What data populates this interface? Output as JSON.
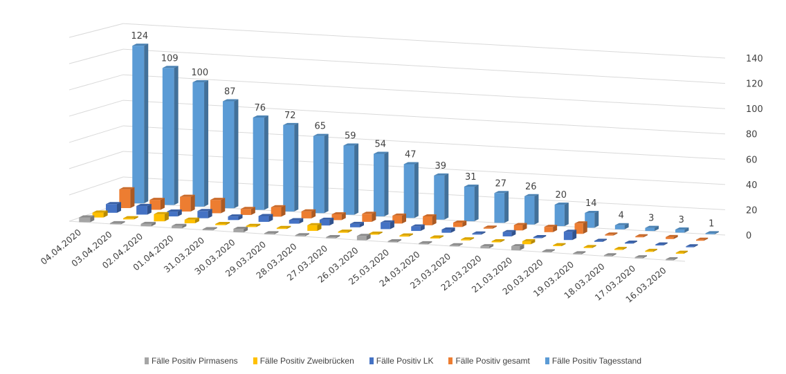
{
  "chart_data": {
    "type": "bar",
    "subtype": "3d-column",
    "title": "",
    "xlabel": "",
    "ylabel": "",
    "ylim": [
      0,
      140
    ],
    "yticks": [
      0,
      20,
      40,
      60,
      80,
      100,
      120,
      140
    ],
    "ytick_labels": [
      "0",
      "20",
      "40",
      "60",
      "80",
      "100",
      "120",
      "140"
    ],
    "grid": true,
    "legend_position": "bottom",
    "categories": [
      "04.04.2020",
      "03.04.2020",
      "02.04.2020",
      "01.04.2020",
      "31.03.2020",
      "30.03.2020",
      "29.03.2020",
      "28.03.2020",
      "27.03.2020",
      "26.03.2020",
      "25.03.2020",
      "24.03.2020",
      "23.03.2020",
      "22.03.2020",
      "21.03.2020",
      "20.03.2020",
      "19.03.2020",
      "18.03.2020",
      "17.03.2020",
      "16.03.2020"
    ],
    "series": [
      {
        "name": "Fälle Positiv Pirmasens",
        "color": "#a5a5a5",
        "values": [
          4,
          0,
          2,
          2,
          0,
          3,
          0,
          0,
          1,
          4,
          0,
          0,
          0,
          2,
          4,
          1,
          0,
          0,
          0,
          0
        ]
      },
      {
        "name": "Fälle Positiv Zweibrücken",
        "color": "#ffc000",
        "values": [
          4,
          1,
          6,
          3,
          1,
          1,
          0,
          5,
          1,
          0,
          1,
          0,
          0,
          1,
          3,
          0,
          0,
          0,
          0,
          0
        ]
      },
      {
        "name": "Fälle Positiv LK",
        "color": "#4472c4",
        "values": [
          7,
          7,
          4,
          6,
          3,
          5,
          3,
          5,
          3,
          6,
          4,
          3,
          1,
          4,
          1,
          8,
          0,
          0,
          1,
          1
        ]
      },
      {
        "name": "Fälle Positiv gesamt",
        "color": "#ed7d31",
        "values": [
          15,
          8,
          12,
          11,
          5,
          8,
          6,
          5,
          7,
          7,
          8,
          4,
          1,
          5,
          5,
          10,
          0.5,
          0.5,
          2,
          1
        ]
      },
      {
        "name": "Fälle Positiv Tagesstand",
        "color": "#5b9bd5",
        "values": [
          124,
          109,
          100,
          87,
          76,
          72,
          65,
          59,
          54,
          47,
          39,
          31,
          27,
          26,
          20,
          14,
          4,
          3,
          3,
          1
        ],
        "data_labels": [
          "124",
          "109",
          "100",
          "87",
          "76",
          "72",
          "65",
          "59",
          "54",
          "47",
          "39",
          "31",
          "27",
          "26",
          "20",
          "14",
          "4",
          "3",
          "3",
          "1"
        ]
      }
    ]
  }
}
